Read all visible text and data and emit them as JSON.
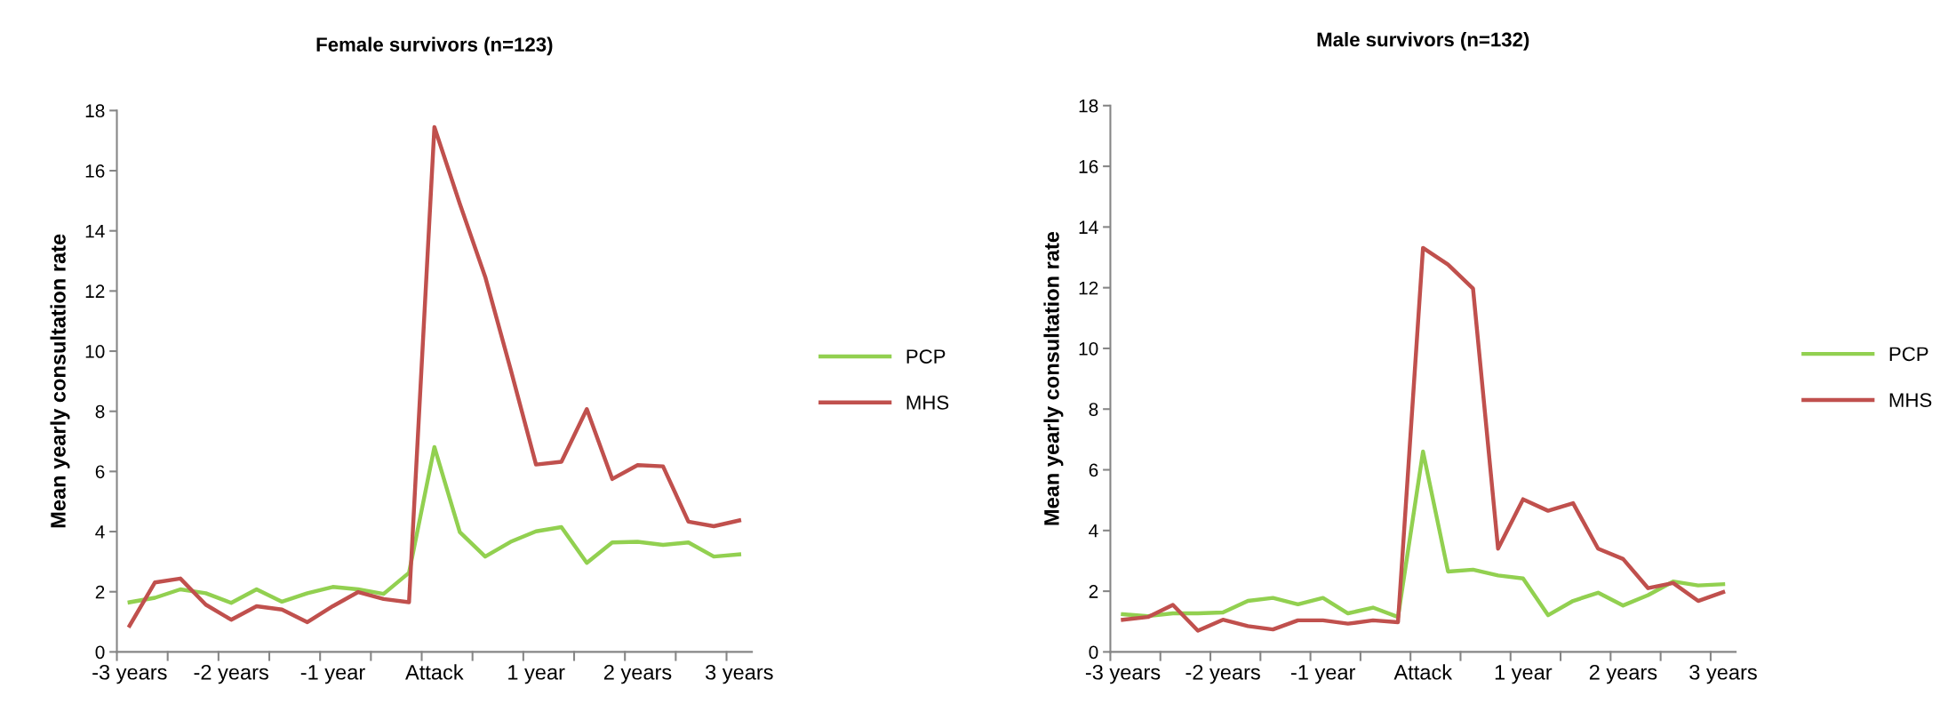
{
  "chart_data": [
    {
      "type": "line",
      "title": "Female survivors (n=123)",
      "ylabel": "Mean yearly consultation rate",
      "categories": [
        "-3 years",
        null,
        null,
        null,
        "-2 years",
        null,
        null,
        null,
        "-1 year",
        null,
        null,
        null,
        "Attack",
        null,
        null,
        null,
        "1 year",
        null,
        null,
        null,
        "2 years",
        null,
        null,
        null,
        "3 years"
      ],
      "series": [
        {
          "name": "PCP",
          "color": "#92d050",
          "values": [
            1.65,
            1.8,
            2.08,
            1.95,
            1.63,
            2.08,
            1.67,
            1.95,
            2.16,
            2.08,
            1.93,
            2.63,
            6.81,
            3.98,
            3.17,
            3.66,
            4.01,
            4.15,
            2.96,
            3.64,
            3.66,
            3.56,
            3.64,
            3.17,
            3.24
          ]
        },
        {
          "name": "MHS",
          "color": "#c0504d",
          "values": [
            0.87,
            2.31,
            2.44,
            1.57,
            1.07,
            1.52,
            1.41,
            0.99,
            1.52,
            1.99,
            1.76,
            1.65,
            17.45,
            14.9,
            12.47,
            9.4,
            6.23,
            6.32,
            8.07,
            5.75,
            6.21,
            6.17,
            4.33,
            4.18,
            4.37
          ]
        }
      ],
      "ylim": [
        0,
        18
      ],
      "yticks": [
        0,
        2,
        4,
        6,
        8,
        10,
        12,
        14,
        16,
        18
      ],
      "grid": false,
      "legend": "right",
      "line_style": "solid"
    },
    {
      "type": "line",
      "title": "Male survivors (n=132)",
      "ylabel": "Mean yearly consultation rate",
      "categories": [
        "-3 years",
        null,
        null,
        null,
        "-2 years",
        null,
        null,
        null,
        "-1 year",
        null,
        null,
        null,
        "Attack",
        null,
        null,
        null,
        "1 year",
        null,
        null,
        null,
        "2 years",
        null,
        null,
        null,
        "3 years"
      ],
      "series": [
        {
          "name": "PCP",
          "color": "#92d050",
          "values": [
            1.24,
            1.18,
            1.27,
            1.27,
            1.3,
            1.68,
            1.78,
            1.57,
            1.78,
            1.27,
            1.46,
            1.15,
            6.6,
            2.65,
            2.71,
            2.52,
            2.42,
            1.21,
            1.68,
            1.95,
            1.53,
            1.87,
            2.32,
            2.19,
            2.23
          ]
        },
        {
          "name": "MHS",
          "color": "#c0504d",
          "values": [
            1.06,
            1.15,
            1.55,
            0.7,
            1.06,
            0.85,
            0.74,
            1.04,
            1.04,
            0.93,
            1.04,
            0.98,
            13.31,
            12.76,
            11.97,
            3.4,
            5.03,
            4.65,
            4.9,
            3.4,
            3.06,
            2.1,
            2.27,
            1.68,
            1.97
          ]
        }
      ],
      "ylim": [
        0,
        18
      ],
      "yticks": [
        0,
        2,
        4,
        6,
        8,
        10,
        12,
        14,
        16,
        18
      ],
      "grid": false,
      "legend": "right",
      "line_style": "solid"
    }
  ]
}
